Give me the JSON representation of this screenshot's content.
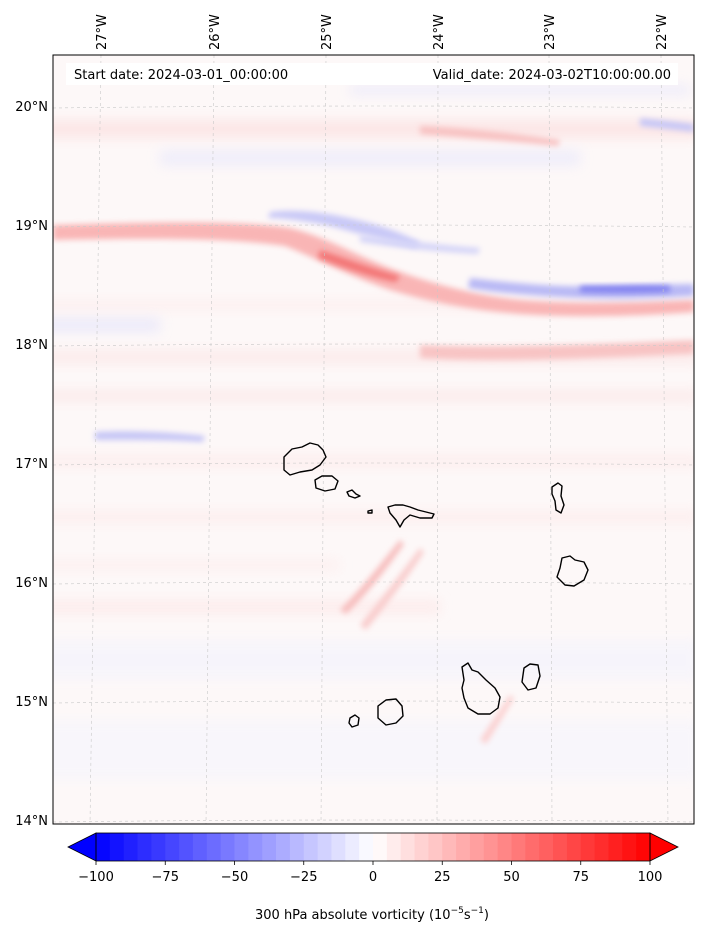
{
  "header": {
    "start_date": "Start date: 2024-03-01_00:00:00",
    "valid_date": "Valid_date: 2024-03-02T10:00:00.00"
  },
  "map": {
    "lon_range": [
      -27.35,
      -21.8
    ],
    "lat_range": [
      13.95,
      20.45
    ],
    "lon_ticks": [
      {
        "value": -27,
        "label": "27°W"
      },
      {
        "value": -26,
        "label": "26°W"
      },
      {
        "value": -25,
        "label": "25°W"
      },
      {
        "value": -24,
        "label": "24°W"
      },
      {
        "value": -23,
        "label": "23°W"
      },
      {
        "value": -22,
        "label": "22°W"
      }
    ],
    "lat_ticks": [
      {
        "value": 20,
        "label": "20°N"
      },
      {
        "value": 19,
        "label": "19°N"
      },
      {
        "value": 18,
        "label": "18°N"
      },
      {
        "value": 17,
        "label": "17°N"
      },
      {
        "value": 16,
        "label": "16°N"
      },
      {
        "value": 15,
        "label": "15°N"
      },
      {
        "value": 14,
        "label": "14°N"
      }
    ],
    "gridlines": true
  },
  "colorbar": {
    "label_main": "300 hPa absolute vorticity (10",
    "label_exp1": "−5",
    "label_mid": "s",
    "label_exp2": "−1",
    "label_end": ")",
    "min": -100,
    "max": 100,
    "ticks": [
      {
        "value": -100,
        "label": "−100"
      },
      {
        "value": -75,
        "label": "−75"
      },
      {
        "value": -50,
        "label": "−50"
      },
      {
        "value": -25,
        "label": "−25"
      },
      {
        "value": 0,
        "label": "0"
      },
      {
        "value": 25,
        "label": "25"
      },
      {
        "value": 50,
        "label": "50"
      },
      {
        "value": 75,
        "label": "75"
      },
      {
        "value": 100,
        "label": "100"
      }
    ],
    "colors": {
      "negative": "#0000ff",
      "neutral": "#ffffff",
      "positive": "#ff0000"
    },
    "extend": "both"
  }
}
